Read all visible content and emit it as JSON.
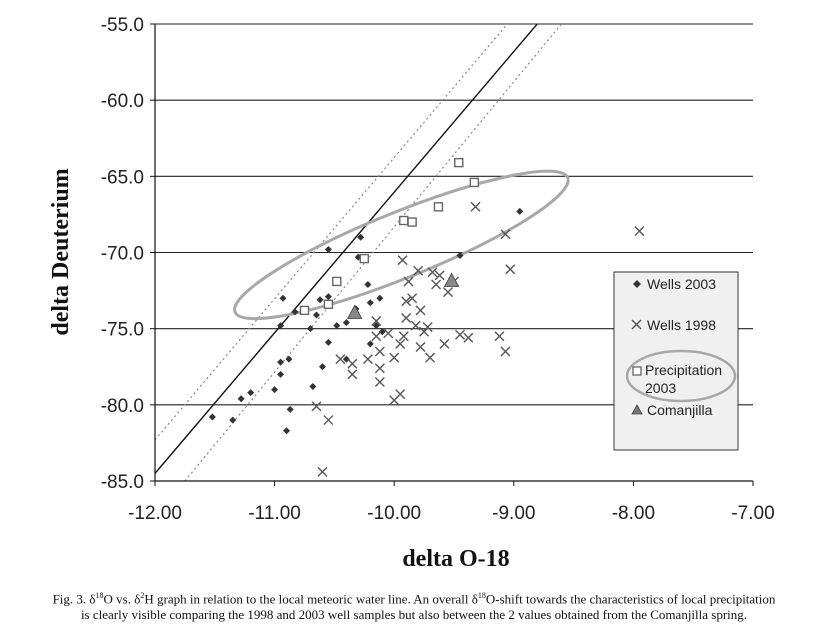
{
  "chart_data": {
    "type": "scatter",
    "title": "",
    "xlabel": "delta O-18",
    "ylabel": "delta Deuterium",
    "xlim": [
      -12.0,
      -7.0
    ],
    "ylim": [
      -85.0,
      -55.0
    ],
    "x_ticks": [
      "-12.00",
      "-11.00",
      "-10.00",
      "-9.00",
      "-8.00",
      "-7.00"
    ],
    "y_ticks": [
      "-55.0",
      "-60.0",
      "-65.0",
      "-70.0",
      "-75.0",
      "-80.0",
      "-85.0"
    ],
    "grid": "horizontal",
    "legend_position": "right",
    "lines": [
      {
        "name": "Local meteoric water line",
        "style": "solid",
        "points": [
          [
            -12.0,
            -84.5
          ],
          [
            -8.75,
            -54.5
          ]
        ]
      },
      {
        "name": "Upper bound",
        "style": "dotted",
        "points": [
          [
            -12.0,
            -82.3
          ],
          [
            -9.0,
            -54.5
          ]
        ]
      },
      {
        "name": "Lower bound",
        "style": "dotted",
        "points": [
          [
            -11.75,
            -85.0
          ],
          [
            -8.55,
            -54.5
          ]
        ]
      }
    ],
    "ellipse": {
      "name": "Precipitation 2003 cluster",
      "center": [
        -9.94,
        -69.5
      ],
      "rx": 1.5,
      "ry": 2.15,
      "angle_deg": -22
    },
    "series": [
      {
        "name": "Wells 2003",
        "marker": "diamond",
        "points": [
          [
            -11.52,
            -80.8
          ],
          [
            -11.35,
            -81.0
          ],
          [
            -11.28,
            -79.6
          ],
          [
            -11.2,
            -79.2
          ],
          [
            -11.0,
            -79.0
          ],
          [
            -10.95,
            -78.0
          ],
          [
            -10.95,
            -77.2
          ],
          [
            -10.9,
            -81.7
          ],
          [
            -10.87,
            -80.3
          ],
          [
            -10.88,
            -77.0
          ],
          [
            -10.83,
            -73.9
          ],
          [
            -10.93,
            -73.0
          ],
          [
            -10.95,
            -74.8
          ],
          [
            -10.7,
            -75.0
          ],
          [
            -10.68,
            -78.8
          ],
          [
            -10.6,
            -77.5
          ],
          [
            -10.65,
            -74.1
          ],
          [
            -10.62,
            -73.1
          ],
          [
            -10.55,
            -69.8
          ],
          [
            -10.55,
            -72.9
          ],
          [
            -10.48,
            -74.8
          ],
          [
            -10.4,
            -74.6
          ],
          [
            -10.4,
            -77.0
          ],
          [
            -10.32,
            -73.7
          ],
          [
            -10.3,
            -70.3
          ],
          [
            -10.28,
            -69.0
          ],
          [
            -10.22,
            -72.1
          ],
          [
            -10.2,
            -73.3
          ],
          [
            -10.15,
            -74.8
          ],
          [
            -10.12,
            -73.0
          ],
          [
            -10.1,
            -75.2
          ],
          [
            -10.2,
            -76.0
          ],
          [
            -10.55,
            -75.9
          ],
          [
            -9.45,
            -70.2
          ],
          [
            -8.95,
            -67.3
          ]
        ]
      },
      {
        "name": "Wells 1998",
        "marker": "x",
        "points": [
          [
            -10.65,
            -80.1
          ],
          [
            -10.55,
            -81.0
          ],
          [
            -10.6,
            -84.4
          ],
          [
            -10.45,
            -77.0
          ],
          [
            -10.35,
            -77.3
          ],
          [
            -10.35,
            -78.0
          ],
          [
            -10.22,
            -77.0
          ],
          [
            -10.15,
            -74.5
          ],
          [
            -10.15,
            -75.5
          ],
          [
            -10.12,
            -76.5
          ],
          [
            -10.12,
            -77.6
          ],
          [
            -10.12,
            -78.5
          ],
          [
            -10.05,
            -75.3
          ],
          [
            -10.0,
            -79.7
          ],
          [
            -10.0,
            -76.9
          ],
          [
            -9.95,
            -76.0
          ],
          [
            -9.95,
            -79.3
          ],
          [
            -9.92,
            -75.5
          ],
          [
            -9.9,
            -74.3
          ],
          [
            -9.88,
            -71.9
          ],
          [
            -9.85,
            -73.0
          ],
          [
            -9.82,
            -74.8
          ],
          [
            -9.8,
            -71.2
          ],
          [
            -9.78,
            -73.8
          ],
          [
            -9.75,
            -75.2
          ],
          [
            -9.72,
            -74.9
          ],
          [
            -9.7,
            -76.9
          ],
          [
            -9.65,
            -72.1
          ],
          [
            -9.62,
            -71.5
          ],
          [
            -9.58,
            -76.0
          ],
          [
            -9.55,
            -72.6
          ],
          [
            -9.5,
            -71.9
          ],
          [
            -9.45,
            -75.4
          ],
          [
            -9.38,
            -75.6
          ],
          [
            -9.32,
            -67.0
          ],
          [
            -9.12,
            -75.5
          ],
          [
            -9.07,
            -68.8
          ],
          [
            -9.07,
            -76.5
          ],
          [
            -9.03,
            -71.1
          ],
          [
            -7.95,
            -68.6
          ],
          [
            -9.93,
            -70.5
          ],
          [
            -9.78,
            -76.2
          ],
          [
            -9.68,
            -71.3
          ],
          [
            -9.9,
            -73.2
          ]
        ]
      },
      {
        "name": "Precipitation 2003",
        "marker": "open-square",
        "points": [
          [
            -10.75,
            -73.8
          ],
          [
            -10.55,
            -73.4
          ],
          [
            -10.48,
            -71.9
          ],
          [
            -10.25,
            -70.4
          ],
          [
            -9.92,
            -67.9
          ],
          [
            -9.85,
            -68.0
          ],
          [
            -9.63,
            -67.0
          ],
          [
            -9.46,
            -64.1
          ],
          [
            -9.33,
            -65.4
          ]
        ]
      },
      {
        "name": "Comanjilla",
        "marker": "triangle",
        "points": [
          [
            -10.33,
            -74.0
          ],
          [
            -9.52,
            -71.9
          ]
        ]
      }
    ]
  },
  "legend": {
    "entries": [
      "Wells 2003",
      "Wells 1998",
      "Precipitation",
      "2003",
      "Comanjilla"
    ]
  },
  "caption": {
    "fig_prefix": "Fig. 3. δ",
    "sup18": "18",
    "mid1": "O vs. δ",
    "sup2": "2",
    "mid2": "H graph in relation to the local meteoric water line. An overall δ",
    "sup18b": "18",
    "line1_end": "O-shift towards the characteristics of local precipitation",
    "line2": "is clearly visible comparing  the 1998 and 2003 well samples  but also between the 2 values obtained from the Comanjilla spring."
  },
  "colors": {
    "axis": "#111111",
    "grid": "#222222",
    "marker_dark": "#333333",
    "marker_x": "#555555",
    "marker_square": "#666666",
    "ellipse": "#a8a8a8",
    "legend_bg": "#f0f0f0"
  }
}
